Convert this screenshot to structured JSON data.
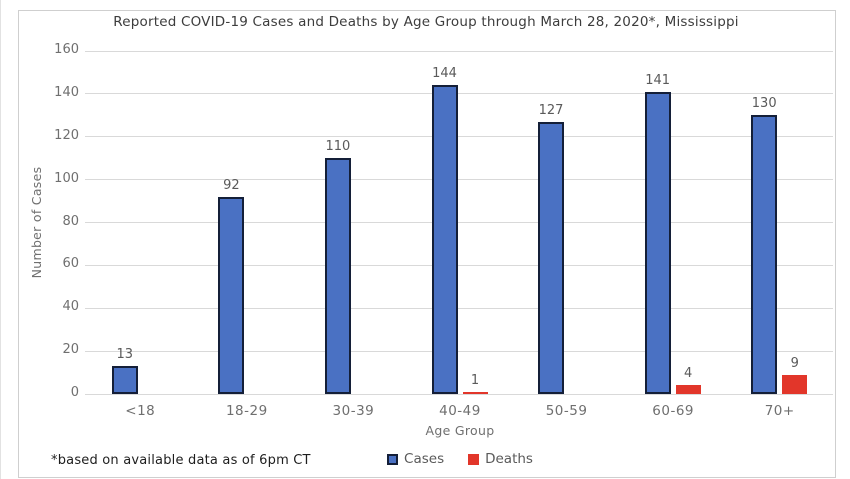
{
  "title": "Reported COVID-19 Cases and Deaths by Age Group through March 28, 2020*, Mississippi",
  "footnote": "*based on available data as of 6pm CT",
  "legend": {
    "items": [
      {
        "label": "Cases"
      },
      {
        "label": "Deaths"
      }
    ]
  },
  "colors": {
    "cases_fill": "#4a71c3",
    "cases_border": "#141f38",
    "deaths_fill": "#e2362a",
    "grid": "#d9d9d9",
    "frame_border": "#cfcfcf",
    "axis_text": "#6f6f6f",
    "value_label_text": "#5a5a5a",
    "title_text": "#3d3d3d",
    "footnote_text": "#1e1e1e"
  },
  "chart_data": {
    "type": "bar",
    "title": "Reported COVID-19 Cases and Deaths by Age Group through March 28, 2020*, Mississippi",
    "xlabel": "Age Group",
    "ylabel": "Number of Cases",
    "categories": [
      "<18",
      "18-29",
      "30-39",
      "40-49",
      "50-59",
      "60-69",
      "70+"
    ],
    "series": [
      {
        "name": "Cases",
        "color": "#4a71c3",
        "values": [
          13,
          92,
          110,
          144,
          127,
          141,
          130
        ]
      },
      {
        "name": "Deaths",
        "color": "#e2362a",
        "values": [
          0,
          0,
          0,
          1,
          0,
          4,
          9
        ]
      }
    ],
    "ylim": [
      0,
      160
    ],
    "ytick_step": 20,
    "grid": true,
    "legend_position": "bottom",
    "value_labels": "nonzero"
  }
}
